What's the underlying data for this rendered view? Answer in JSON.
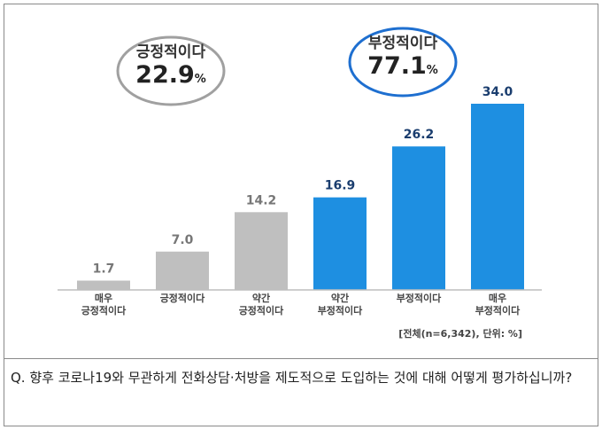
{
  "chart_data": {
    "type": "bar",
    "categories": [
      [
        "매우",
        "긍정적이다"
      ],
      [
        "긍정적이다"
      ],
      [
        "약간",
        "긍정적이다"
      ],
      [
        "약간",
        "부정적이다"
      ],
      [
        "부정적이다"
      ],
      [
        "매우",
        "부정적이다"
      ]
    ],
    "values": [
      1.7,
      7.0,
      14.2,
      16.9,
      26.2,
      34.0
    ],
    "value_labels": [
      "1.7",
      "7.0",
      "14.2",
      "16.9",
      "26.2",
      "34.0"
    ],
    "bar_colors": [
      "#bfbfbf",
      "#bfbfbf",
      "#bfbfbf",
      "#1e8fe1",
      "#1e8fe1",
      "#1e8fe1"
    ],
    "ylim": [
      0,
      34.0
    ],
    "grid": false,
    "legend": "none"
  },
  "summary": {
    "positive": {
      "label": "긍정적이다",
      "value": "22.9",
      "unit": "%",
      "border_color": "#a0a0a0"
    },
    "negative": {
      "label": "부정적이다",
      "value": "77.1",
      "unit": "%",
      "border_color": "#1e6fd0"
    }
  },
  "note": "[전체(n=6,342), 단위: %]",
  "question": "Q.  향후 코로나19와 무관하게 전화상담·처방을 제도적으로 도입하는 것에 대해 어떻게 평가하십니까?"
}
